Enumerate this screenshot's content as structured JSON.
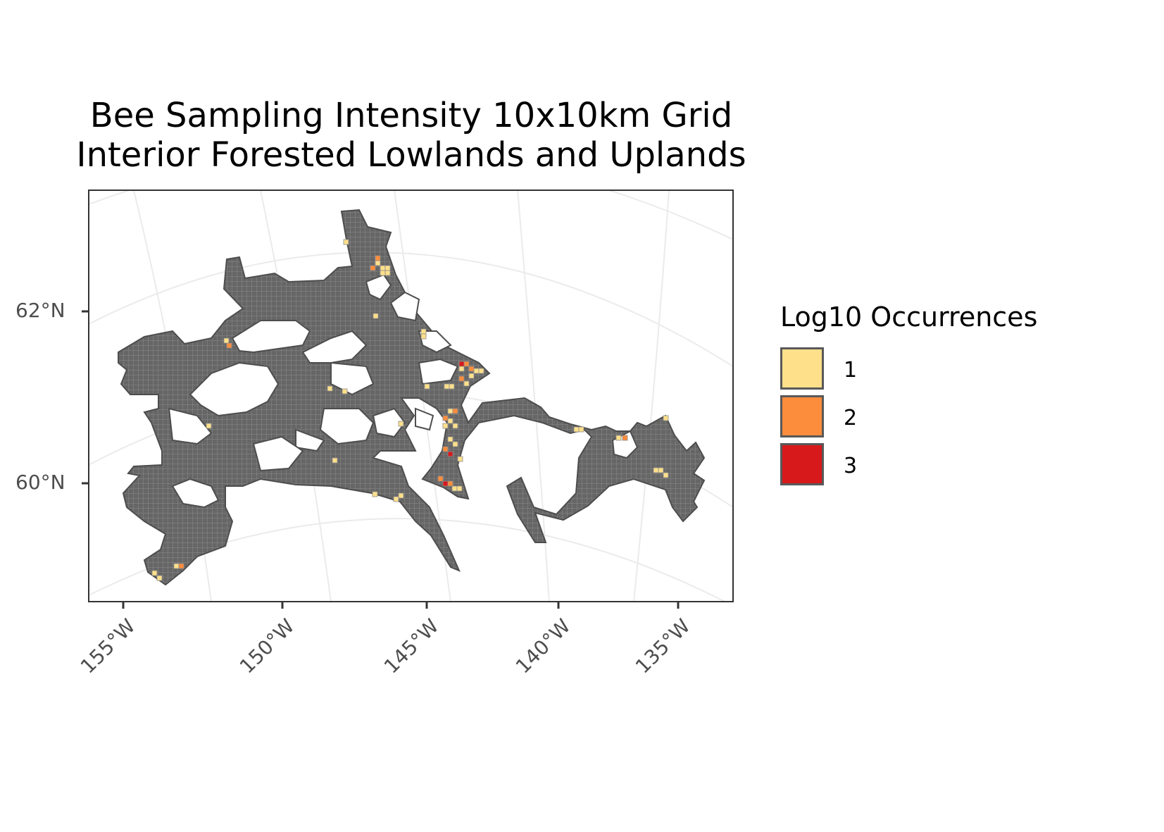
{
  "title": {
    "line1": "Bee Sampling Intensity 10x10km Grid",
    "line2": "Interior Forested Lowlands and Uplands"
  },
  "axes": {
    "y_ticks": [
      "62°N",
      "60°N"
    ],
    "x_ticks": [
      "155°W",
      "150°W",
      "145°W",
      "140°W",
      "135°W"
    ]
  },
  "legend": {
    "title": "Log10 Occurrences",
    "items": [
      {
        "label": "1",
        "color": "#fee08b"
      },
      {
        "label": "2",
        "color": "#fc8d3c"
      },
      {
        "label": "3",
        "color": "#d7191c"
      }
    ]
  },
  "map": {
    "region_fill": "#666666",
    "grid_line_color": "#8c8c8c",
    "graticule_color": "#ebebeb"
  }
}
